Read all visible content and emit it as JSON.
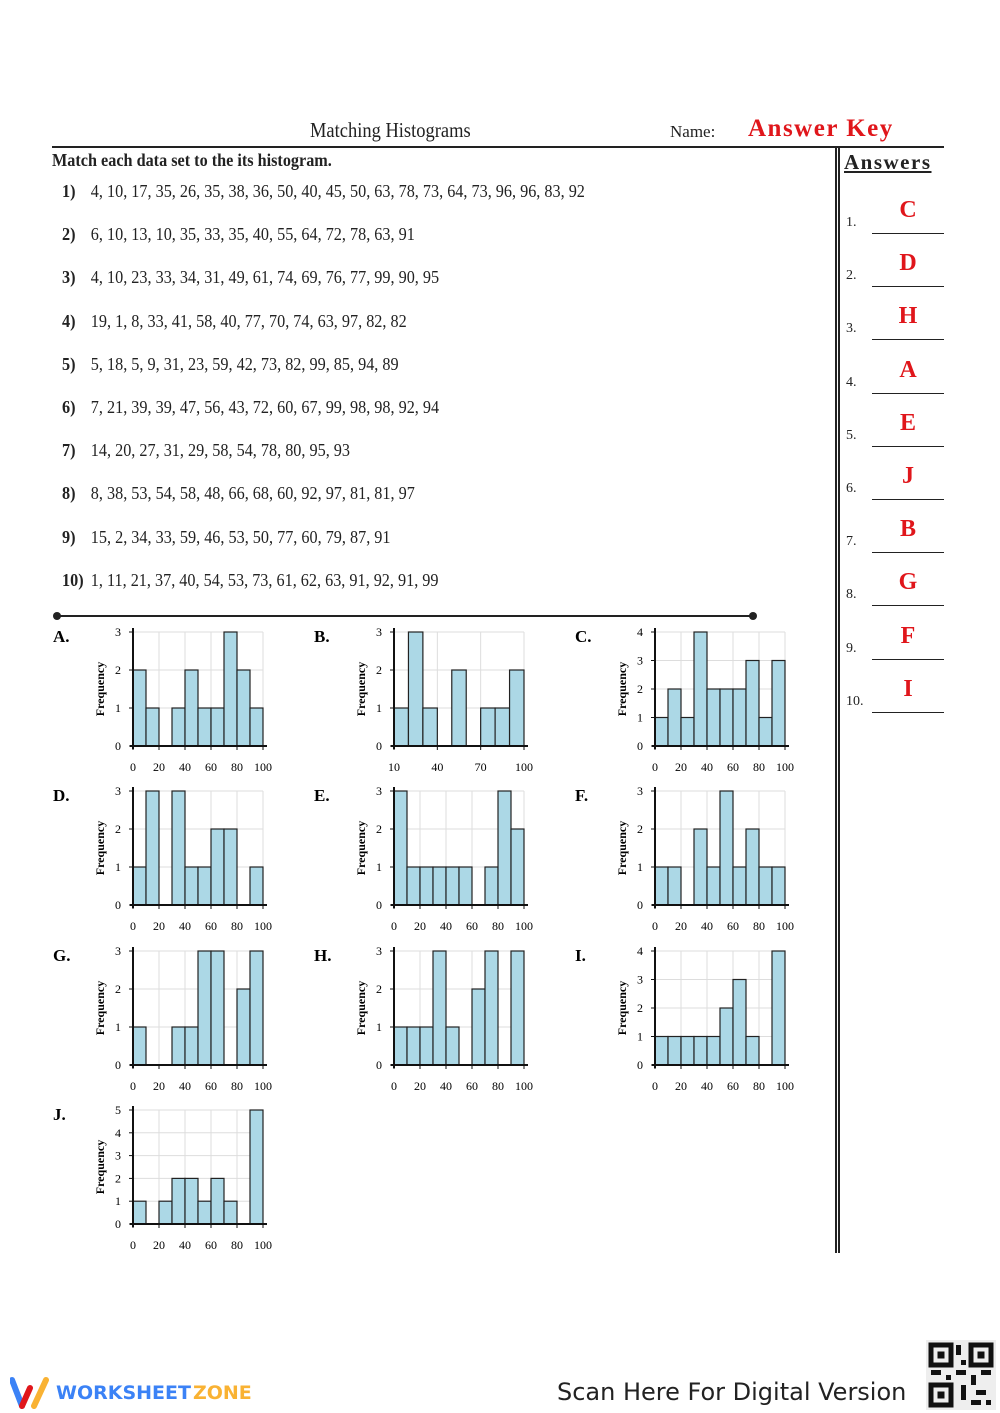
{
  "header": {
    "title": "Matching Histograms",
    "name_label": "Name:",
    "name_value": "Answer Key"
  },
  "instructions": "Match each data set to the its histogram.",
  "data_sets": [
    {
      "num": "1)",
      "values": "4, 10, 17, 35, 26, 35, 38, 36, 50, 40, 45, 50, 63, 78, 73, 64, 73, 96, 96, 83, 92"
    },
    {
      "num": "2)",
      "values": "6, 10, 13, 10, 35, 33, 35, 40, 55, 64, 72, 78, 63, 91"
    },
    {
      "num": "3)",
      "values": "4, 10, 23, 33, 34, 31, 49, 61, 74, 69, 76, 77, 99, 90, 95"
    },
    {
      "num": "4)",
      "values": "19, 1, 8, 33, 41, 58, 40, 77, 70, 74, 63, 97, 82, 82"
    },
    {
      "num": "5)",
      "values": "5, 18, 5, 9, 31, 23, 59, 42, 73, 82, 99, 85, 94, 89"
    },
    {
      "num": "6)",
      "values": "7, 21, 39, 39, 47, 56, 43, 72, 60, 67, 99, 98, 98, 92, 94"
    },
    {
      "num": "7)",
      "values": "14, 20, 27, 31, 29, 58, 54, 78, 80, 95, 93"
    },
    {
      "num": "8)",
      "values": "8, 38, 53, 54, 58, 48, 66, 68, 60, 92, 97, 81, 81, 97"
    },
    {
      "num": "9)",
      "values": "15, 2, 34, 33, 59, 46, 53, 50, 77, 60, 79, 87, 91"
    },
    {
      "num": "10)",
      "values": "1, 11, 21, 37, 40, 54, 53, 73, 61, 62, 63, 91, 92, 91, 99"
    }
  ],
  "answers": {
    "heading": "Answers",
    "items": [
      {
        "num": "1.",
        "value": "C"
      },
      {
        "num": "2.",
        "value": "D"
      },
      {
        "num": "3.",
        "value": "H"
      },
      {
        "num": "4.",
        "value": "A"
      },
      {
        "num": "5.",
        "value": "E"
      },
      {
        "num": "6.",
        "value": "J"
      },
      {
        "num": "7.",
        "value": "B"
      },
      {
        "num": "8.",
        "value": "G"
      },
      {
        "num": "9.",
        "value": "F"
      },
      {
        "num": "10.",
        "value": "I"
      }
    ]
  },
  "colors": {
    "bar": "#acd8e6",
    "answer": "#e0161b",
    "logo_blue": "#3b82f6",
    "logo_yellow": "#f9b233"
  },
  "chart_data": [
    {
      "type": "bar",
      "label": "A.",
      "ylabel": "Frequency",
      "x_ticks": [
        "0",
        "20",
        "40",
        "60",
        "80",
        "100"
      ],
      "bin_start": 0,
      "bin_width": 10,
      "values": [
        2,
        1,
        0,
        1,
        2,
        1,
        1,
        3,
        2,
        1
      ],
      "ylim": [
        0,
        3
      ],
      "grid": true
    },
    {
      "type": "bar",
      "label": "B.",
      "ylabel": "Frequency",
      "x_ticks": [
        "10",
        "40",
        "70",
        "100"
      ],
      "bin_start": 10,
      "bin_width": 10,
      "values": [
        1,
        3,
        1,
        0,
        2,
        0,
        1,
        1,
        2
      ],
      "ylim": [
        0,
        3
      ],
      "grid": true
    },
    {
      "type": "bar",
      "label": "C.",
      "ylabel": "Frequency",
      "x_ticks": [
        "0",
        "20",
        "40",
        "60",
        "80",
        "100"
      ],
      "bin_start": 0,
      "bin_width": 10,
      "values": [
        1,
        2,
        1,
        4,
        2,
        2,
        2,
        3,
        1,
        3
      ],
      "ylim": [
        0,
        4
      ],
      "grid": true
    },
    {
      "type": "bar",
      "label": "D.",
      "ylabel": "Frequency",
      "x_ticks": [
        "0",
        "20",
        "40",
        "60",
        "80",
        "100"
      ],
      "bin_start": 0,
      "bin_width": 10,
      "values": [
        1,
        3,
        0,
        3,
        1,
        1,
        2,
        2,
        0,
        1
      ],
      "ylim": [
        0,
        3
      ],
      "grid": true
    },
    {
      "type": "bar",
      "label": "E.",
      "ylabel": "Frequency",
      "x_ticks": [
        "0",
        "20",
        "40",
        "60",
        "80",
        "100"
      ],
      "bin_start": 0,
      "bin_width": 10,
      "values": [
        3,
        1,
        1,
        1,
        1,
        1,
        0,
        1,
        3,
        2
      ],
      "ylim": [
        0,
        3
      ],
      "grid": true
    },
    {
      "type": "bar",
      "label": "F.",
      "ylabel": "Frequency",
      "x_ticks": [
        "0",
        "20",
        "40",
        "60",
        "80",
        "100"
      ],
      "bin_start": 0,
      "bin_width": 10,
      "values": [
        1,
        1,
        0,
        2,
        1,
        3,
        1,
        2,
        1,
        1
      ],
      "ylim": [
        0,
        3
      ],
      "grid": true
    },
    {
      "type": "bar",
      "label": "G.",
      "ylabel": "Frequency",
      "x_ticks": [
        "0",
        "20",
        "40",
        "60",
        "80",
        "100"
      ],
      "bin_start": 0,
      "bin_width": 10,
      "values": [
        1,
        0,
        0,
        1,
        1,
        3,
        3,
        0,
        2,
        3
      ],
      "ylim": [
        0,
        3
      ],
      "grid": true
    },
    {
      "type": "bar",
      "label": "H.",
      "ylabel": "Frequency",
      "x_ticks": [
        "0",
        "20",
        "40",
        "60",
        "80",
        "100"
      ],
      "bin_start": 0,
      "bin_width": 10,
      "values": [
        1,
        1,
        1,
        3,
        1,
        0,
        2,
        3,
        0,
        3
      ],
      "ylim": [
        0,
        3
      ],
      "grid": true
    },
    {
      "type": "bar",
      "label": "I.",
      "ylabel": "Frequency",
      "x_ticks": [
        "0",
        "20",
        "40",
        "60",
        "80",
        "100"
      ],
      "bin_start": 0,
      "bin_width": 10,
      "values": [
        1,
        1,
        1,
        1,
        1,
        2,
        3,
        1,
        0,
        4
      ],
      "ylim": [
        0,
        4
      ],
      "grid": true
    },
    {
      "type": "bar",
      "label": "J.",
      "ylabel": "Frequency",
      "x_ticks": [
        "0",
        "20",
        "40",
        "60",
        "80",
        "100"
      ],
      "bin_start": 0,
      "bin_width": 10,
      "values": [
        1,
        0,
        1,
        2,
        2,
        1,
        2,
        1,
        0,
        5
      ],
      "ylim": [
        0,
        5
      ],
      "grid": true
    }
  ],
  "footer": {
    "logo_part1": "WORKSHEET",
    "logo_part2": "ZONE",
    "scan_text": "Scan Here For Digital Version",
    "qr_icon": "qr-code-icon"
  }
}
